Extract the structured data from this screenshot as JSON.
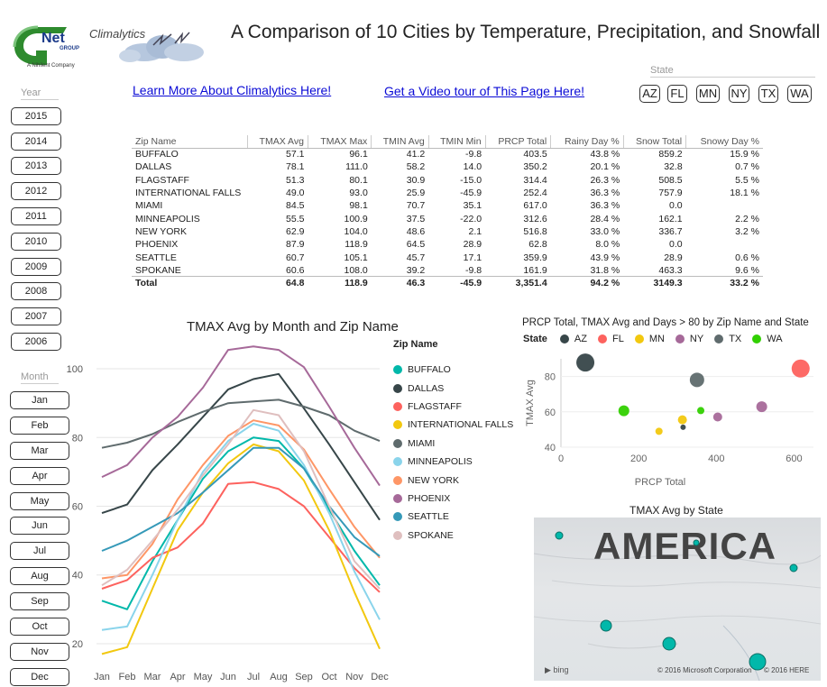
{
  "header": {
    "logo_text": "Net",
    "logo_group": "GROUP",
    "logo_sub": "A Nihilent Company",
    "brand": "Climalytics",
    "title": "A Comparison of 10 Cities by Temperature, Precipitation, and Snowfall"
  },
  "links": {
    "learn_more": "Learn More About Climalytics Here!",
    "video_tour": "Get a Video tour of This Page Here!"
  },
  "year_slicer": {
    "label": "Year",
    "items": [
      "2015",
      "2014",
      "2013",
      "2012",
      "2011",
      "2010",
      "2009",
      "2008",
      "2007",
      "2006"
    ]
  },
  "month_slicer": {
    "label": "Month",
    "items": [
      "Jan",
      "Feb",
      "Mar",
      "Apr",
      "May",
      "Jun",
      "Jul",
      "Aug",
      "Sep",
      "Oct",
      "Nov",
      "Dec"
    ]
  },
  "state_slicer": {
    "label": "State",
    "items": [
      "AZ",
      "FL",
      "MN",
      "NY",
      "TX",
      "WA"
    ]
  },
  "table": {
    "columns": [
      "Zip Name",
      "TMAX Avg",
      "TMAX Max",
      "TMIN Avg",
      "TMIN Min",
      "PRCP Total",
      "Rainy Day %",
      "Snow Total",
      "Snowy Day %"
    ],
    "rows": [
      [
        "BUFFALO",
        "57.1",
        "96.1",
        "41.2",
        "-9.8",
        "403.5",
        "43.8 %",
        "859.2",
        "15.9 %"
      ],
      [
        "DALLAS",
        "78.1",
        "111.0",
        "58.2",
        "14.0",
        "350.2",
        "20.1 %",
        "32.8",
        "0.7 %"
      ],
      [
        "FLAGSTAFF",
        "51.3",
        "80.1",
        "30.9",
        "-15.0",
        "314.4",
        "26.3 %",
        "508.5",
        "5.5 %"
      ],
      [
        "INTERNATIONAL FALLS",
        "49.0",
        "93.0",
        "25.9",
        "-45.9",
        "252.4",
        "36.3 %",
        "757.9",
        "18.1 %"
      ],
      [
        "MIAMI",
        "84.5",
        "98.1",
        "70.7",
        "35.1",
        "617.0",
        "36.3 %",
        "0.0",
        ""
      ],
      [
        "MINNEAPOLIS",
        "55.5",
        "100.9",
        "37.5",
        "-22.0",
        "312.6",
        "28.4 %",
        "162.1",
        "2.2 %"
      ],
      [
        "NEW YORK",
        "62.9",
        "104.0",
        "48.6",
        "2.1",
        "516.8",
        "33.0 %",
        "336.7",
        "3.2 %"
      ],
      [
        "PHOENIX",
        "87.9",
        "118.9",
        "64.5",
        "28.9",
        "62.8",
        "8.0 %",
        "0.0",
        ""
      ],
      [
        "SEATTLE",
        "60.7",
        "105.1",
        "45.7",
        "17.1",
        "359.9",
        "43.9 %",
        "28.9",
        "0.6 %"
      ],
      [
        "SPOKANE",
        "60.6",
        "108.0",
        "39.2",
        "-9.8",
        "161.9",
        "31.8 %",
        "463.3",
        "9.6 %"
      ]
    ],
    "total": [
      "Total",
      "64.8",
      "118.9",
      "46.3",
      "-45.9",
      "3,351.4",
      "94.2 %",
      "3149.3",
      "33.2 %"
    ]
  },
  "chart_data": [
    {
      "type": "line",
      "title": "TMAX Avg by Month and Zip Name",
      "legend_title": "Zip Name",
      "legend_position": "right",
      "categories": [
        "Jan",
        "Feb",
        "Mar",
        "Apr",
        "May",
        "Jun",
        "Jul",
        "Aug",
        "Sep",
        "Oct",
        "Nov",
        "Dec"
      ],
      "ylim": [
        15,
        105
      ],
      "yticks": [
        20,
        40,
        60,
        80,
        100
      ],
      "grid": true,
      "series": [
        {
          "name": "BUFFALO",
          "color": "#01b8aa",
          "values": [
            32.5,
            30,
            44,
            56,
            68,
            76,
            80,
            79,
            71,
            59,
            47,
            37
          ]
        },
        {
          "name": "DALLAS",
          "color": "#374649",
          "values": [
            58,
            60.5,
            70.5,
            78,
            86,
            94,
            97,
            98.5,
            88.5,
            78,
            67,
            56
          ]
        },
        {
          "name": "FLAGSTAFF",
          "color": "#fd625e",
          "values": [
            36,
            38.5,
            45,
            48,
            55,
            66.5,
            67,
            65,
            60,
            51,
            42,
            35
          ]
        },
        {
          "name": "INTERNATIONAL FALLS",
          "color": "#f2c80f",
          "values": [
            17,
            19,
            36,
            53,
            64,
            72.5,
            78,
            76,
            67.5,
            53,
            35,
            18.5
          ]
        },
        {
          "name": "MIAMI",
          "color": "#5f6b6d",
          "values": [
            77,
            78.5,
            81,
            84.5,
            87.5,
            90,
            90.5,
            91,
            89,
            86.5,
            82,
            79
          ]
        },
        {
          "name": "MINNEAPOLIS",
          "color": "#8ad4eb",
          "values": [
            24,
            25,
            40,
            56,
            70,
            79,
            84,
            82,
            72,
            58,
            41,
            27
          ]
        },
        {
          "name": "NEW YORK",
          "color": "#fe9666",
          "values": [
            39,
            40,
            49,
            62,
            72,
            80.5,
            85,
            83.5,
            76.5,
            65,
            54,
            45
          ]
        },
        {
          "name": "PHOENIX",
          "color": "#a66999",
          "values": [
            68.5,
            72,
            80,
            86,
            94.5,
            105.5,
            106.5,
            105.5,
            100.5,
            89,
            77,
            66
          ]
        },
        {
          "name": "SEATTLE",
          "color": "#3599b8",
          "values": [
            47,
            50,
            54,
            58,
            64,
            70.5,
            77,
            77,
            71,
            60,
            51,
            45.5
          ]
        },
        {
          "name": "SPOKANE",
          "color": "#dfbfbf",
          "values": [
            37,
            41.5,
            50,
            59,
            69,
            78,
            88,
            86.5,
            76,
            60,
            44,
            36
          ]
        }
      ]
    },
    {
      "type": "scatter",
      "title": "PRCP Total, TMAX Avg and Days > 80 by Zip Name and State",
      "legend_title": "State",
      "legend_position": "top-left",
      "xlabel": "PRCP Total",
      "ylabel": "TMAX Avg",
      "xlim": [
        0,
        650
      ],
      "ylim": [
        40,
        90
      ],
      "xticks": [
        0,
        200,
        400,
        600
      ],
      "yticks": [
        40,
        60,
        80
      ],
      "legend": [
        {
          "name": "AZ",
          "color": "#374649"
        },
        {
          "name": "FL",
          "color": "#fd625e"
        },
        {
          "name": "MN",
          "color": "#f2c80f"
        },
        {
          "name": "NY",
          "color": "#a66999"
        },
        {
          "name": "TX",
          "color": "#5f6b6d"
        },
        {
          "name": "WA",
          "color": "#31d000"
        }
      ],
      "points": [
        {
          "state": "AZ",
          "x": 62.8,
          "y": 87.9,
          "size": 10
        },
        {
          "state": "FL",
          "x": 617.0,
          "y": 84.5,
          "size": 10
        },
        {
          "state": "TX",
          "x": 350.2,
          "y": 78.1,
          "size": 8
        },
        {
          "state": "WA",
          "x": 161.9,
          "y": 60.6,
          "size": 6
        },
        {
          "state": "WA",
          "x": 359.9,
          "y": 60.7,
          "size": 4
        },
        {
          "state": "NY",
          "x": 516.8,
          "y": 62.9,
          "size": 6
        },
        {
          "state": "NY",
          "x": 403.5,
          "y": 57.1,
          "size": 5
        },
        {
          "state": "MN",
          "x": 312.6,
          "y": 55.5,
          "size": 5
        },
        {
          "state": "MN",
          "x": 252.4,
          "y": 49.0,
          "size": 4
        },
        {
          "state": "AZ",
          "x": 314.4,
          "y": 51.3,
          "size": 3
        }
      ]
    }
  ],
  "map": {
    "title": "TMAX Avg by State",
    "label": "AMERICA",
    "bing": "bing",
    "copyright_ms": "© 2016 Microsoft Corporation",
    "copyright_here": "© 2016 HERE"
  },
  "colors": {
    "link": "#0b0bd6",
    "map_bubble": "#01b8aa"
  }
}
